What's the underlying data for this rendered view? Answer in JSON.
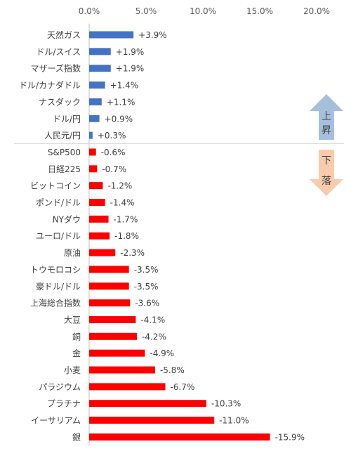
{
  "chart_data": {
    "type": "bar",
    "orientation": "horizontal",
    "title": "",
    "xlabel": "",
    "ylabel": "",
    "xlim": [
      0,
      20
    ],
    "x_ticks": [
      "0.0%",
      "5.0%",
      "10.0%",
      "15.0%",
      "20.0%"
    ],
    "grid": false,
    "categories": [
      "天然ガス",
      "ドル/スイス",
      "マザーズ指数",
      "ドル/カナダドル",
      "ナスダック",
      "ドル/円",
      "人民元/円",
      "S&P500",
      "日経225",
      "ビットコイン",
      "ポンド/ドル",
      "NYダウ",
      "ユーロ/ドル",
      "原油",
      "トウモロコシ",
      "豪ドル/ドル",
      "上海総合指数",
      "大豆",
      "銅",
      "金",
      "小麦",
      "パラジウム",
      "プラチナ",
      "イーサリアム",
      "銀"
    ],
    "values": [
      3.9,
      1.9,
      1.9,
      1.4,
      1.1,
      0.9,
      0.3,
      -0.6,
      -0.7,
      -1.2,
      -1.4,
      -1.7,
      -1.8,
      -2.3,
      -3.5,
      -3.5,
      -3.6,
      -4.1,
      -4.2,
      -4.9,
      -5.8,
      -6.7,
      -10.3,
      -11.0,
      -15.9
    ],
    "data_labels": [
      "+3.9%",
      "+1.9%",
      "+1.9%",
      "+1.4%",
      "+1.1%",
      "+0.9%",
      "+0.3%",
      "-0.6%",
      "-0.7%",
      "-1.2%",
      "-1.4%",
      "-1.7%",
      "-1.8%",
      "-2.3%",
      "-3.5%",
      "-3.5%",
      "-3.6%",
      "-4.1%",
      "-4.2%",
      "-4.9%",
      "-5.8%",
      "-6.7%",
      "-10.3%",
      "-11.0%",
      "-15.9%"
    ],
    "colors": {
      "up": "#4472c4",
      "down": "#ff0000"
    },
    "bar_length_shows": "absolute value of change",
    "up_arrow": {
      "label": "上昇",
      "color": "#a6bfdd"
    },
    "down_arrow": {
      "label": "下落",
      "color": "#f8cbad"
    }
  }
}
